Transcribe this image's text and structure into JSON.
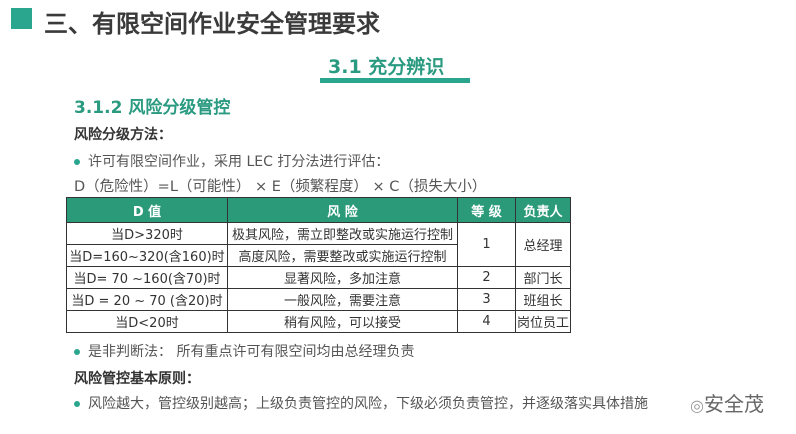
{
  "title": "三、有限空间作业安全管理要求",
  "section": "3.1  充分辨识",
  "subsection": "3.1.2  风险分级管控",
  "method_label": "风险分级方法：",
  "bullet1": "许可有限空间作业，采用  LEC  打分法进行评估：",
  "formula": "D（危险性）=L（可能性） ×  E（频繁程度）   × C（损失大小）",
  "table": {
    "headers": [
      "D 值",
      "风  险",
      "等  级",
      "负责人"
    ],
    "rows": [
      {
        "d": "当D>320时",
        "risk": "极其风险，需立即整改或实施运行控制",
        "level": "1",
        "owner": "总经理"
      },
      {
        "d": "当D=160~320(含160)时",
        "risk": "高度风险，需要整改或实施运行控制"
      },
      {
        "d": "当D= 70 ~160(含70)时",
        "risk": "显著风险，多加注意",
        "level": "2",
        "owner": "部门长"
      },
      {
        "d": "当D = 20 ~ 70  (含20)时",
        "risk": "一般风险，需要注意",
        "level": "3",
        "owner": "班组长"
      },
      {
        "d": "当D<20时",
        "risk": "稍有风险，可以接受",
        "level": "4",
        "owner": "岗位员工"
      }
    ]
  },
  "bullet2": "是非判断法：   所有重点许可有限空间均由总经理负责",
  "principle_label": "风险管控基本原则：",
  "bullet3": "风险越大，管控级别越高；上级负责管控的风险，下级必须负责管控，并逐级落实具体措施",
  "watermark": "安全茂",
  "accent": "#2aa58e"
}
